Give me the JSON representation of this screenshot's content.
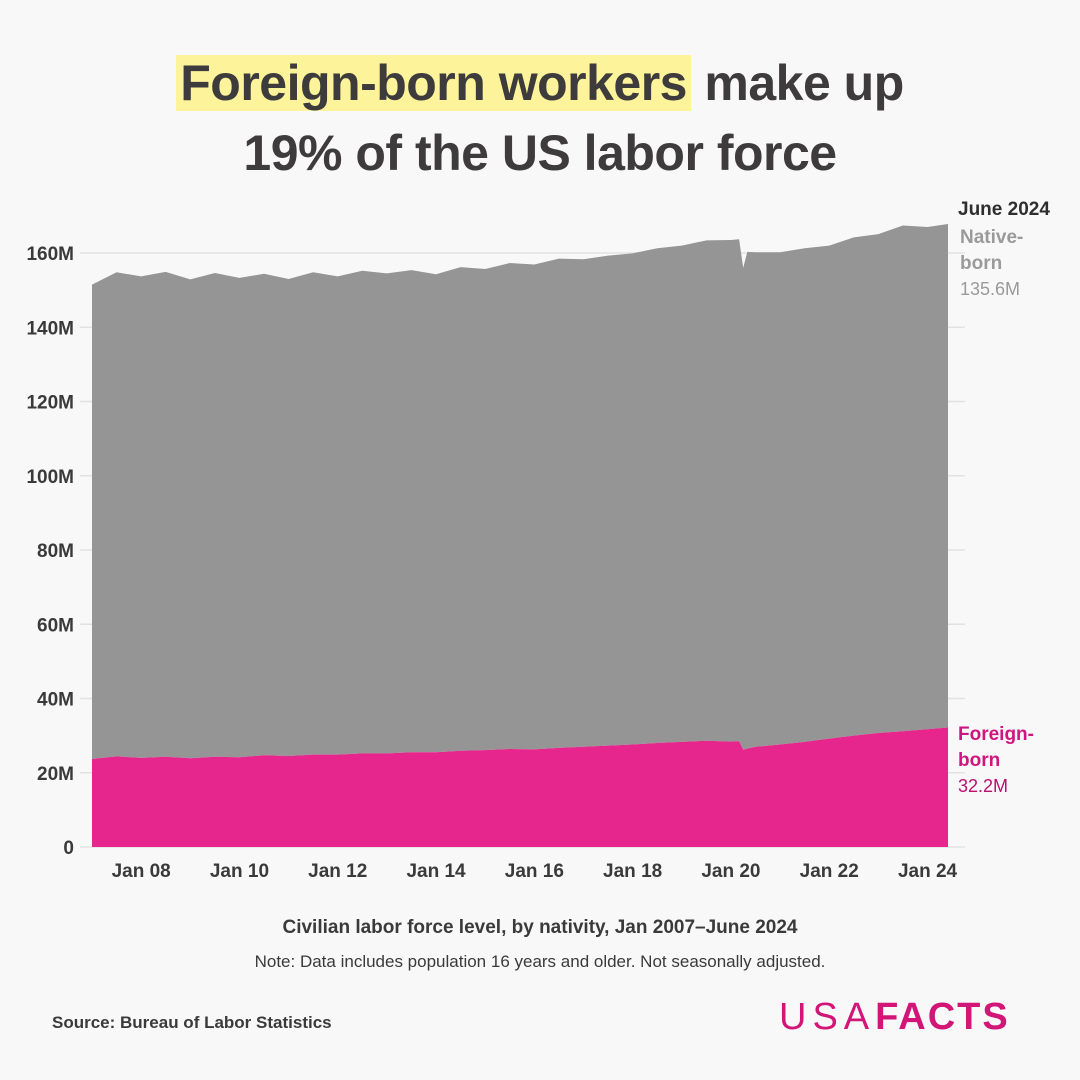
{
  "title": {
    "highlight": "Foreign-born workers",
    "rest_line1": " make up",
    "line2": "19% of the US labor force",
    "highlight_color": "#fcf39a"
  },
  "colors": {
    "native_born": "#959595",
    "foreign_born": "#e6268c",
    "gridline": "#e2e2e2",
    "background": "#f8f8f8",
    "brand": "#d21577"
  },
  "labels": {
    "date": "June 2024",
    "native_name": "Native-born",
    "native_line1": "Native-",
    "native_line2": "born",
    "native_value": "135.6M",
    "foreign_line1": "Foreign-",
    "foreign_line2": "born",
    "foreign_value": "32.2M"
  },
  "subtitle": "Civilian labor force level, by nativity,  Jan 2007–June 2024",
  "note": "Note: Data includes population 16 years and older. Not seasonally adjusted.",
  "source": "Source: Bureau of Labor Statistics",
  "logo": {
    "thin": "USA",
    "bold": "FACTS"
  },
  "chart_data": {
    "type": "area",
    "stacked": true,
    "title": "Foreign-born workers make up 19% of the US labor force",
    "subtitle": "Civilian labor force level, by nativity, Jan 2007–June 2024",
    "xlabel": "",
    "ylabel": "",
    "ylim": [
      0,
      160
    ],
    "y_unit": "M",
    "yticks": [
      0,
      20,
      40,
      60,
      80,
      100,
      120,
      140,
      160
    ],
    "ytick_labels": [
      "0",
      "20M",
      "40M",
      "60M",
      "80M",
      "100M",
      "120M",
      "140M",
      "160M"
    ],
    "xtick_labels": [
      "Jan 08",
      "Jan 10",
      "Jan 12",
      "Jan 14",
      "Jan 16",
      "Jan 18",
      "Jan 20",
      "Jan 22",
      "Jan 24"
    ],
    "xtick_months": [
      12,
      36,
      60,
      84,
      108,
      132,
      156,
      180,
      204
    ],
    "grid": true,
    "legend": "direct labels at right",
    "x_months_from_jan2007": [
      0,
      6,
      12,
      18,
      24,
      30,
      36,
      42,
      48,
      54,
      60,
      66,
      72,
      78,
      84,
      90,
      96,
      102,
      108,
      114,
      120,
      126,
      132,
      138,
      144,
      150,
      156,
      158,
      159,
      160,
      162,
      168,
      174,
      180,
      186,
      192,
      198,
      204,
      209
    ],
    "series": [
      {
        "name": "Foreign-born",
        "values": [
          23.7,
          24.4,
          24.0,
          24.3,
          23.9,
          24.3,
          24.2,
          24.7,
          24.5,
          24.9,
          24.9,
          25.2,
          25.2,
          25.5,
          25.5,
          25.9,
          26.1,
          26.4,
          26.3,
          26.7,
          27.0,
          27.3,
          27.6,
          28.0,
          28.3,
          28.6,
          28.4,
          28.5,
          26.2,
          26.5,
          27.0,
          27.6,
          28.3,
          29.2,
          30.0,
          30.7,
          31.2,
          31.7,
          32.2
        ]
      },
      {
        "name": "Native-born",
        "values": [
          127.8,
          130.4,
          129.7,
          130.6,
          129.0,
          130.3,
          129.1,
          129.7,
          128.5,
          129.9,
          128.8,
          130.0,
          129.3,
          129.9,
          128.8,
          130.3,
          129.6,
          130.9,
          130.6,
          131.8,
          131.3,
          132.0,
          132.3,
          133.3,
          133.7,
          134.8,
          135.1,
          135.2,
          129.8,
          133.8,
          133.2,
          132.6,
          133.0,
          132.8,
          134.2,
          134.4,
          136.2,
          135.3,
          135.6
        ]
      }
    ],
    "final_values": {
      "date": "June 2024",
      "Native-born": 135.6,
      "Foreign-born": 32.2
    }
  }
}
